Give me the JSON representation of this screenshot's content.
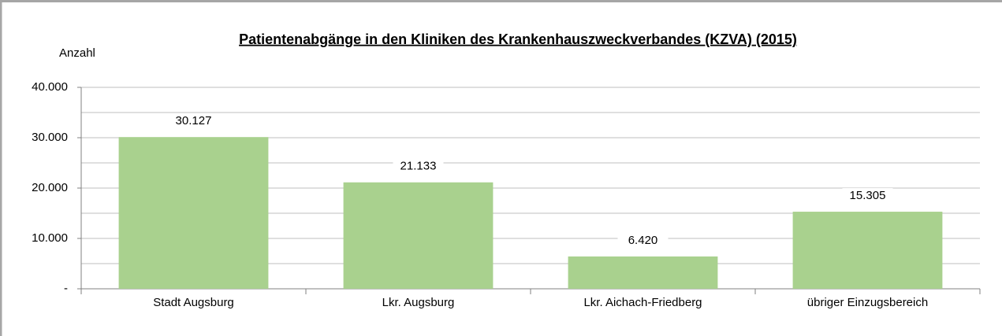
{
  "chart_data": {
    "type": "bar",
    "title": "Patientenabgänge in den Kliniken des Krankenhauszweckverbandes (KZVA) (2015)",
    "y_label": "Anzahl",
    "categories": [
      "Stadt Augsburg",
      "Lkr. Augsburg",
      "Lkr. Aichach-Friedberg",
      "übriger Einzugsbereich"
    ],
    "values": [
      30127,
      21133,
      6420,
      15305
    ],
    "value_labels": [
      "30.127",
      "21.133",
      "6.420",
      "15.305"
    ],
    "color": "#a9d18e",
    "ylim": [
      0,
      40000
    ],
    "yticks": [
      {
        "value": 0,
        "label": "-"
      },
      {
        "value": 10000,
        "label": "10.000"
      },
      {
        "value": 20000,
        "label": "20.000"
      },
      {
        "value": 30000,
        "label": "30.000"
      },
      {
        "value": 40000,
        "label": "40.000"
      }
    ],
    "minor_yticks": [
      5000,
      15000,
      25000,
      35000
    ],
    "grid": true
  }
}
